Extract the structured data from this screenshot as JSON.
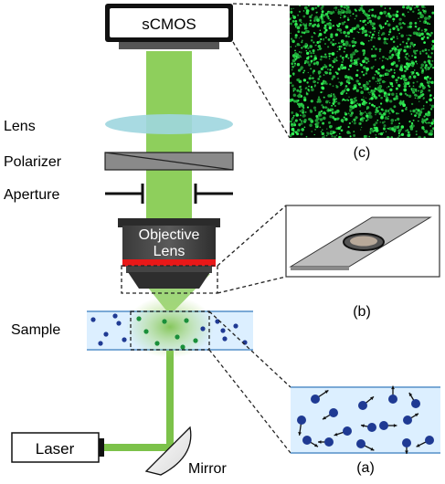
{
  "labels": {
    "camera": "sCMOS",
    "lens": "Lens",
    "polarizer": "Polarizer",
    "aperture": "Aperture",
    "objective_line1": "Objective",
    "objective_line2": "Lens",
    "sample": "Sample",
    "laser": "Laser",
    "mirror": "Mirror"
  },
  "panels": {
    "a": "(a)",
    "b": "(b)",
    "c": "(c)"
  },
  "colors": {
    "beam": "#7cc24a",
    "beam_light": "#a7d877",
    "lens": "#9fd6df",
    "sample_fill": "#dcefff",
    "sample_border": "#7aa9d6",
    "particle": "#1f3a93",
    "speckle": "#2ea84a",
    "red_band": "#e81818"
  }
}
